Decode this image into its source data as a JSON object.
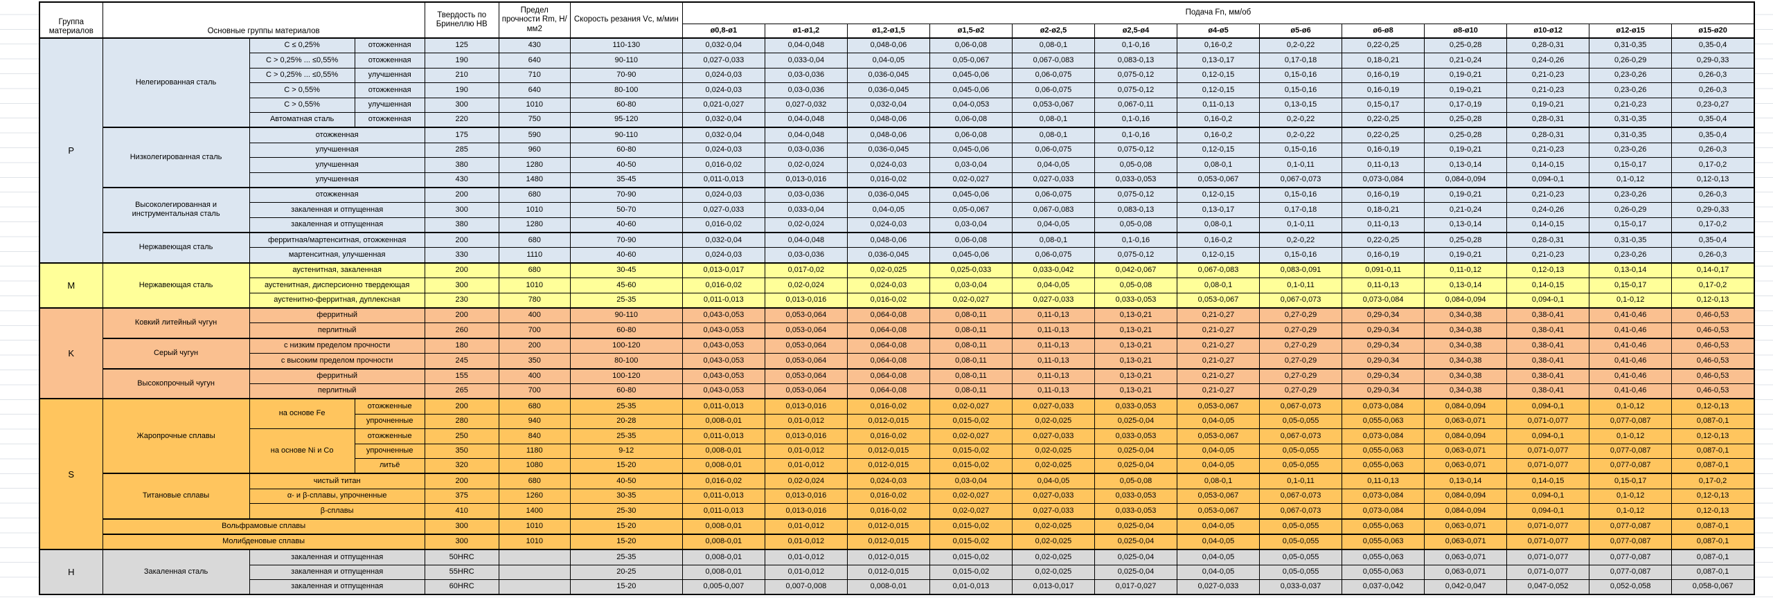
{
  "table": {
    "headers": {
      "group": "Группа материалов",
      "main_groups": "Основные группы материалов",
      "hardness": "Твердость по Бринеллю HB",
      "strength": "Предел прочности Rm, Н/мм2",
      "speed": "Скорость резания Vc, м/мин",
      "feed": "Подача Fn, мм/об",
      "diameters": [
        "ø0,8-ø1",
        "ø1-ø1,2",
        "ø1,2-ø1,5",
        "ø1,5-ø2",
        "ø2-ø2,5",
        "ø2,5-ø4",
        "ø4-ø5",
        "ø5-ø6",
        "ø6-ø8",
        "ø8-ø10",
        "ø10-ø12",
        "ø12-ø15",
        "ø15-ø20"
      ]
    },
    "group_colors": {
      "P": "#dce6f1",
      "M": "#ffff99",
      "K": "#fac090",
      "S": "#ffc55e",
      "H": "#d9d9d9"
    },
    "feed_patterns": {
      "A": [
        "0,032-0,04",
        "0,04-0,048",
        "0,048-0,06",
        "0,06-0,08",
        "0,08-0,1",
        "0,1-0,16",
        "0,16-0,2",
        "0,2-0,22",
        "0,22-0,25",
        "0,25-0,28",
        "0,28-0,31",
        "0,31-0,35",
        "0,35-0,4"
      ],
      "B": [
        "0,027-0,033",
        "0,033-0,04",
        "0,04-0,05",
        "0,05-0,067",
        "0,067-0,083",
        "0,083-0,13",
        "0,13-0,17",
        "0,17-0,18",
        "0,18-0,21",
        "0,21-0,24",
        "0,24-0,26",
        "0,26-0,29",
        "0,29-0,33"
      ],
      "C": [
        "0,024-0,03",
        "0,03-0,036",
        "0,036-0,045",
        "0,045-0,06",
        "0,06-0,075",
        "0,075-0,12",
        "0,12-0,15",
        "0,15-0,16",
        "0,16-0,19",
        "0,19-0,21",
        "0,21-0,23",
        "0,23-0,26",
        "0,26-0,3"
      ],
      "D": [
        "0,021-0,027",
        "0,027-0,032",
        "0,032-0,04",
        "0,04-0,053",
        "0,053-0,067",
        "0,067-0,11",
        "0,11-0,13",
        "0,13-0,15",
        "0,15-0,17",
        "0,17-0,19",
        "0,19-0,21",
        "0,21-0,23",
        "0,23-0,27"
      ],
      "E": [
        "0,016-0,02",
        "0,02-0,024",
        "0,024-0,03",
        "0,03-0,04",
        "0,04-0,05",
        "0,05-0,08",
        "0,08-0,1",
        "0,1-0,11",
        "0,11-0,13",
        "0,13-0,14",
        "0,14-0,15",
        "0,15-0,17",
        "0,17-0,2"
      ],
      "F": [
        "0,011-0,013",
        "0,013-0,016",
        "0,016-0,02",
        "0,02-0,027",
        "0,027-0,033",
        "0,033-0,053",
        "0,053-0,067",
        "0,067-0,073",
        "0,073-0,084",
        "0,084-0,094",
        "0,094-0,1",
        "0,1-0,12",
        "0,12-0,13"
      ],
      "G": [
        "0,013-0,017",
        "0,017-0,02",
        "0,02-0,025",
        "0,025-0,033",
        "0,033-0,042",
        "0,042-0,067",
        "0,067-0,083",
        "0,083-0,091",
        "0,091-0,11",
        "0,11-0,12",
        "0,12-0,13",
        "0,13-0,14",
        "0,14-0,17"
      ],
      "H": [
        "0,043-0,053",
        "0,053-0,064",
        "0,064-0,08",
        "0,08-0,11",
        "0,11-0,13",
        "0,13-0,21",
        "0,21-0,27",
        "0,27-0,29",
        "0,29-0,34",
        "0,34-0,38",
        "0,38-0,41",
        "0,41-0,46",
        "0,46-0,53"
      ],
      "I": [
        "0,008-0,01",
        "0,01-0,012",
        "0,012-0,015",
        "0,015-0,02",
        "0,02-0,025",
        "0,025-0,04",
        "0,04-0,05",
        "0,05-0,055",
        "0,055-0,063",
        "0,063-0,071",
        "0,071-0,077",
        "0,077-0,087",
        "0,087-0,1"
      ],
      "J": [
        "0,005-0,007",
        "0,007-0,008",
        "0,008-0,01",
        "0,01-0,013",
        "0,013-0,017",
        "0,017-0,027",
        "0,027-0,033",
        "0,033-0,037",
        "0,037-0,042",
        "0,042-0,047",
        "0,047-0,052",
        "0,052-0,058",
        "0,058-0,067"
      ]
    },
    "rows": [
      {
        "g": "P",
        "sec": true,
        "cells": [
          {
            "t": "P",
            "rs": 15,
            "k": "letter"
          },
          {
            "t": "Нелегированная сталь",
            "rs": 6,
            "k": "family"
          },
          {
            "t": "C ≤ 0,25%",
            "k": "sub"
          },
          {
            "t": "отожженная",
            "k": "state"
          }
        ],
        "hb": "125",
        "rm": "430",
        "vc": "110-130",
        "f": "A"
      },
      {
        "g": "P",
        "cells": [
          {
            "t": "C > 0,25% ... ≤0,55%",
            "k": "sub"
          },
          {
            "t": "отожженная",
            "k": "state"
          }
        ],
        "hb": "190",
        "rm": "640",
        "vc": "90-110",
        "f": "B"
      },
      {
        "g": "P",
        "cells": [
          {
            "t": "C > 0,25% ... ≤0,55%",
            "k": "sub"
          },
          {
            "t": "улучшенная",
            "k": "state"
          }
        ],
        "hb": "210",
        "rm": "710",
        "vc": "70-90",
        "f": "C"
      },
      {
        "g": "P",
        "cells": [
          {
            "t": "C > 0,55%",
            "k": "sub"
          },
          {
            "t": "отожженная",
            "k": "state"
          }
        ],
        "hb": "190",
        "rm": "640",
        "vc": "80-100",
        "f": "C"
      },
      {
        "g": "P",
        "cells": [
          {
            "t": "C > 0,55%",
            "k": "sub"
          },
          {
            "t": "улучшенная",
            "k": "state"
          }
        ],
        "hb": "300",
        "rm": "1010",
        "vc": "60-80",
        "f": "D"
      },
      {
        "g": "P",
        "cells": [
          {
            "t": "Автоматная сталь",
            "k": "sub"
          },
          {
            "t": "отожженная",
            "k": "state"
          }
        ],
        "hb": "220",
        "rm": "750",
        "vc": "95-120",
        "f": "A"
      },
      {
        "g": "P",
        "sec": true,
        "cells": [
          {
            "t": "Низколегированная сталь",
            "rs": 4,
            "k": "family"
          },
          {
            "t": "отожженная",
            "cs": 2,
            "k": "state"
          }
        ],
        "hb": "175",
        "rm": "590",
        "vc": "90-110",
        "f": "A"
      },
      {
        "g": "P",
        "cells": [
          {
            "t": "улучшенная",
            "cs": 2,
            "k": "state"
          }
        ],
        "hb": "285",
        "rm": "960",
        "vc": "60-80",
        "f": "C"
      },
      {
        "g": "P",
        "cells": [
          {
            "t": "улучшенная",
            "cs": 2,
            "k": "state"
          }
        ],
        "hb": "380",
        "rm": "1280",
        "vc": "40-50",
        "f": "E"
      },
      {
        "g": "P",
        "cells": [
          {
            "t": "улучшенная",
            "cs": 2,
            "k": "state"
          }
        ],
        "hb": "430",
        "rm": "1480",
        "vc": "35-45",
        "f": "F"
      },
      {
        "g": "P",
        "sec": true,
        "cells": [
          {
            "t": "Высоколегированная и инструментальная сталь",
            "rs": 3,
            "k": "family"
          },
          {
            "t": "отожженная",
            "cs": 2,
            "k": "state"
          }
        ],
        "hb": "200",
        "rm": "680",
        "vc": "70-90",
        "f": "C"
      },
      {
        "g": "P",
        "cells": [
          {
            "t": "закаленная и отпущенная",
            "cs": 2,
            "k": "state"
          }
        ],
        "hb": "300",
        "rm": "1010",
        "vc": "50-70",
        "f": "B"
      },
      {
        "g": "P",
        "cells": [
          {
            "t": "закаленная и отпущенная",
            "cs": 2,
            "k": "state"
          }
        ],
        "hb": "380",
        "rm": "1280",
        "vc": "40-60",
        "f": "E"
      },
      {
        "g": "P",
        "sec": true,
        "cells": [
          {
            "t": "Нержавеющая сталь",
            "rs": 2,
            "k": "family"
          },
          {
            "t": "ферритная/мартенситная, отожженная",
            "cs": 2,
            "k": "state"
          }
        ],
        "hb": "200",
        "rm": "680",
        "vc": "70-90",
        "f": "A"
      },
      {
        "g": "P",
        "cells": [
          {
            "t": "мартенситная, улучшенная",
            "cs": 2,
            "k": "state"
          }
        ],
        "hb": "330",
        "rm": "1110",
        "vc": "40-60",
        "f": "C"
      },
      {
        "g": "M",
        "sec": true,
        "cells": [
          {
            "t": "M",
            "rs": 3,
            "k": "letter"
          },
          {
            "t": "Нержавеющая сталь",
            "rs": 3,
            "k": "family"
          },
          {
            "t": "аустенитная, закаленная",
            "cs": 2,
            "k": "state"
          }
        ],
        "hb": "200",
        "rm": "680",
        "vc": "30-45",
        "f": "G"
      },
      {
        "g": "M",
        "cells": [
          {
            "t": "аустенитная, дисперсионно твердеющая",
            "cs": 2,
            "k": "state"
          }
        ],
        "hb": "300",
        "rm": "1010",
        "vc": "45-60",
        "f": "E"
      },
      {
        "g": "M",
        "cells": [
          {
            "t": "аустенитно-ферритная, дуплексная",
            "cs": 2,
            "k": "state"
          }
        ],
        "hb": "230",
        "rm": "780",
        "vc": "25-35",
        "f": "F"
      },
      {
        "g": "K",
        "sec": true,
        "cells": [
          {
            "t": "K",
            "rs": 6,
            "k": "letter"
          },
          {
            "t": "Ковкий литейный чугун",
            "rs": 2,
            "k": "family"
          },
          {
            "t": "ферритный",
            "cs": 2,
            "k": "state"
          }
        ],
        "hb": "200",
        "rm": "400",
        "vc": "90-110",
        "f": "H"
      },
      {
        "g": "K",
        "cells": [
          {
            "t": "перлитный",
            "cs": 2,
            "k": "state"
          }
        ],
        "hb": "260",
        "rm": "700",
        "vc": "60-80",
        "f": "H"
      },
      {
        "g": "K",
        "sec": true,
        "cells": [
          {
            "t": "Серый чугун",
            "rs": 2,
            "k": "family"
          },
          {
            "t": "с низким пределом прочности",
            "cs": 2,
            "k": "state"
          }
        ],
        "hb": "180",
        "rm": "200",
        "vc": "100-120",
        "f": "H"
      },
      {
        "g": "K",
        "cells": [
          {
            "t": "с высоким пределом прочности",
            "cs": 2,
            "k": "state"
          }
        ],
        "hb": "245",
        "rm": "350",
        "vc": "80-100",
        "f": "H"
      },
      {
        "g": "K",
        "sec": true,
        "cells": [
          {
            "t": "Высокопрочный чугун",
            "rs": 2,
            "k": "family"
          },
          {
            "t": "ферритный",
            "cs": 2,
            "k": "state"
          }
        ],
        "hb": "155",
        "rm": "400",
        "vc": "100-120",
        "f": "H"
      },
      {
        "g": "K",
        "cells": [
          {
            "t": "перлитный",
            "cs": 2,
            "k": "state"
          }
        ],
        "hb": "265",
        "rm": "700",
        "vc": "60-80",
        "f": "H"
      },
      {
        "g": "S",
        "sec": true,
        "cells": [
          {
            "t": "S",
            "rs": 10,
            "k": "letter"
          },
          {
            "t": "Жаропрочные сплавы",
            "rs": 5,
            "k": "family"
          },
          {
            "t": "на основе Fe",
            "rs": 2,
            "k": "sub"
          },
          {
            "t": "отожженные",
            "k": "state"
          }
        ],
        "hb": "200",
        "rm": "680",
        "vc": "25-35",
        "f": "F"
      },
      {
        "g": "S",
        "cells": [
          {
            "t": "упрочненные",
            "k": "state"
          }
        ],
        "hb": "280",
        "rm": "940",
        "vc": "20-28",
        "f": "I"
      },
      {
        "g": "S",
        "cells": [
          {
            "t": "на основе Ni и Co",
            "rs": 3,
            "k": "sub"
          },
          {
            "t": "отожженные",
            "k": "state"
          }
        ],
        "hb": "250",
        "rm": "840",
        "vc": "25-35",
        "f": "F"
      },
      {
        "g": "S",
        "cells": [
          {
            "t": "упрочненные",
            "k": "state"
          }
        ],
        "hb": "350",
        "rm": "1180",
        "vc": "9-12",
        "f": "I"
      },
      {
        "g": "S",
        "cells": [
          {
            "t": "литьё",
            "k": "state"
          }
        ],
        "hb": "320",
        "rm": "1080",
        "vc": "15-20",
        "f": "I"
      },
      {
        "g": "S",
        "sec": true,
        "cells": [
          {
            "t": "Титановые сплавы",
            "rs": 3,
            "k": "family"
          },
          {
            "t": "чистый титан",
            "cs": 2,
            "k": "state"
          }
        ],
        "hb": "200",
        "rm": "680",
        "vc": "40-50",
        "f": "E"
      },
      {
        "g": "S",
        "cells": [
          {
            "t": "α- и β-сплавы, упрочненные",
            "cs": 2,
            "k": "state"
          }
        ],
        "hb": "375",
        "rm": "1260",
        "vc": "30-35",
        "f": "F"
      },
      {
        "g": "S",
        "cells": [
          {
            "t": "β-сплавы",
            "cs": 2,
            "k": "state"
          }
        ],
        "hb": "410",
        "rm": "1400",
        "vc": "25-30",
        "f": "F"
      },
      {
        "g": "S",
        "sec": true,
        "cells": [
          {
            "t": "Вольфрамовые сплавы",
            "cs": 3,
            "k": "family"
          }
        ],
        "hb": "300",
        "rm": "1010",
        "vc": "15-20",
        "f": "I"
      },
      {
        "g": "S",
        "sec": true,
        "cells": [
          {
            "t": "Молибденовые сплавы",
            "cs": 3,
            "k": "family"
          }
        ],
        "hb": "300",
        "rm": "1010",
        "vc": "15-20",
        "f": "I"
      },
      {
        "g": "H",
        "sec": true,
        "cells": [
          {
            "t": "H",
            "rs": 3,
            "k": "letter"
          },
          {
            "t": "Закаленная сталь",
            "rs": 3,
            "k": "family"
          },
          {
            "t": "закаленная и отпущенная",
            "cs": 2,
            "k": "state"
          }
        ],
        "hb": "50HRC",
        "rm": "",
        "vc": "25-35",
        "f": "I"
      },
      {
        "g": "H",
        "cells": [
          {
            "t": "закаленная и отпущенная",
            "cs": 2,
            "k": "state"
          }
        ],
        "hb": "55HRC",
        "rm": "",
        "vc": "20-25",
        "f": "I"
      },
      {
        "g": "H",
        "cells": [
          {
            "t": "закаленная и отпущенная",
            "cs": 2,
            "k": "state"
          }
        ],
        "hb": "60HRC",
        "rm": "",
        "vc": "15-20",
        "f": "J"
      }
    ]
  }
}
